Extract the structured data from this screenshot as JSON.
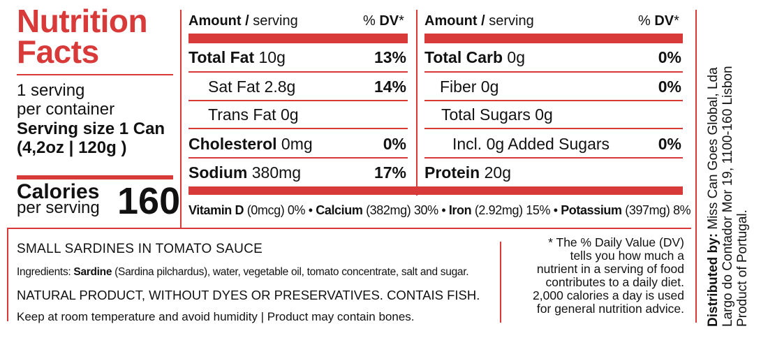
{
  "panel": {
    "title_line1": "Nutrition",
    "title_line2": "Facts",
    "servings_line1": "1 serving",
    "servings_line2": "per container",
    "serving_size_line1": "Serving size 1 Can",
    "serving_size_line2": "(4,2oz | 120g )",
    "calories_label": "Calories",
    "calories_sub": "per serving",
    "calories_value": "160"
  },
  "left_table": {
    "header_amount": "Amount /",
    "header_serving": " serving",
    "header_pct": "% ",
    "header_dv": "DV",
    "header_star": "*",
    "rows": [
      {
        "label": "Total Fat",
        "amount": " 10g",
        "dv": "13%"
      },
      {
        "label": "Sat Fat 2.8g",
        "amount": "",
        "dv": "14%"
      },
      {
        "label": "Trans Fat 0g",
        "amount": "",
        "dv": ""
      },
      {
        "label": "Cholesterol",
        "amount": " 0mg",
        "dv": "0%"
      },
      {
        "label": "Sodium",
        "amount": " 380mg",
        "dv": "17%"
      }
    ]
  },
  "right_table": {
    "header_amount": "Amount /",
    "header_serving": " serving",
    "header_pct": "% ",
    "header_dv": "DV",
    "header_star": "*",
    "rows": [
      {
        "label": "Total Carb",
        "amount": " 0g",
        "dv": "0%"
      },
      {
        "label": "Fiber 0g",
        "amount": "",
        "dv": "0%"
      },
      {
        "label": "Total Sugars 0g",
        "amount": "",
        "dv": ""
      },
      {
        "label": "Incl. 0g Added Sugars",
        "amount": "",
        "dv": "0%"
      },
      {
        "label": "Protein",
        "amount": " 20g",
        "dv": ""
      }
    ]
  },
  "vitamins": {
    "vit_d_label": "Vitamin D",
    "vit_d_value": " (0mcg) 0% • ",
    "calcium_label": "Calcium",
    "calcium_value": " (382mg) 30% • ",
    "iron_label": "Iron",
    "iron_value": " (2.92mg) 15% • ",
    "potassium_label": "Potassium",
    "potassium_value": " (397mg) 8%"
  },
  "product": {
    "name": "SMALL SARDINES IN TOMATO SAUCE",
    "ingredients_label": "Ingredients: ",
    "ingredients_first": "Sardine",
    "ingredients_rest": " (Sardina pilchardus), water, vegetable oil, tomato concentrate,  salt and sugar.",
    "natural_note": "NATURAL PRODUCT, WITHOUT DYES OR PRESERVATIVES. CONTAIS FISH.",
    "storage_note": "Keep at room temperature and avoid humidity | Product may contain bones."
  },
  "footnote": {
    "line1": "* The % Daily Value (DV)",
    "line2": "tells you how much a",
    "line3": "nutrient in a serving of food",
    "line4": "contributes to a daily diet.",
    "line5": "2,000 calories a day is used",
    "line6": "for general nutrition advice."
  },
  "distributor": {
    "label": "Distributed by:",
    "name": " Miss Can Goes Global, Lda",
    "address": "Largo do Contador Mor 19, 1100-160 Lisbon",
    "origin": "Product of Portugal."
  },
  "colors": {
    "accent": "#d83a3a",
    "text": "#111111",
    "background": "#ffffff"
  }
}
